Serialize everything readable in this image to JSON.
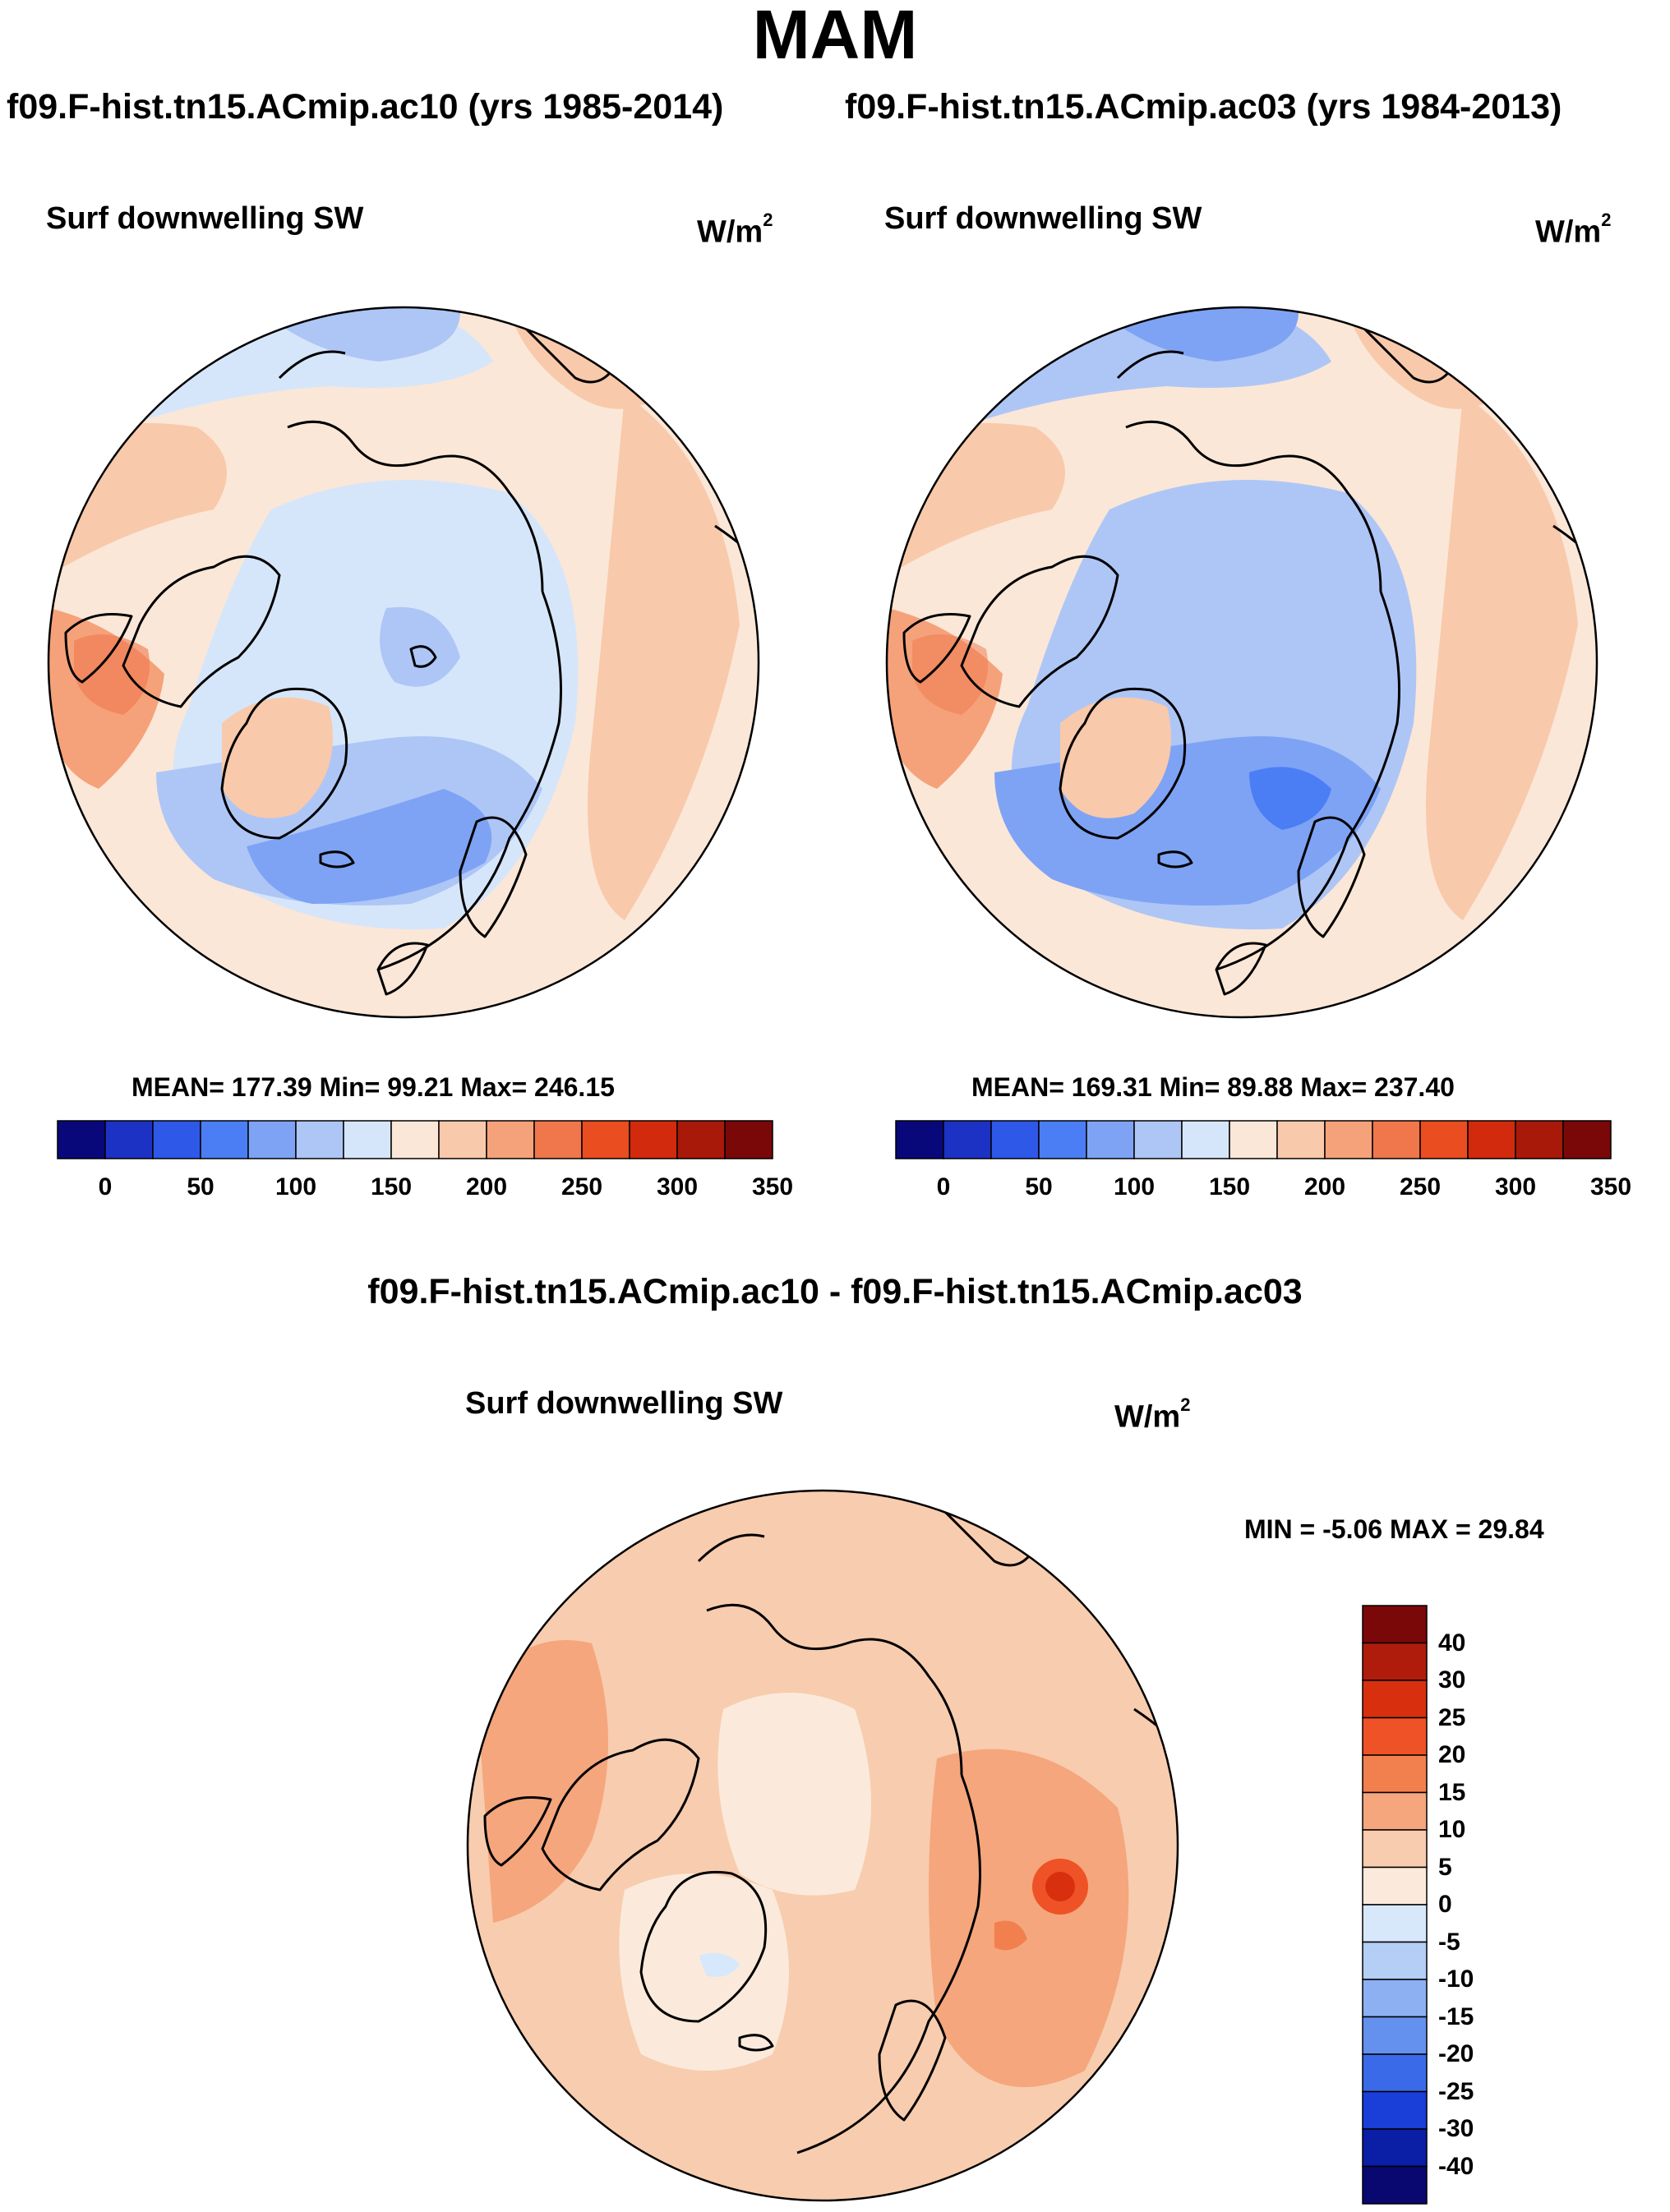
{
  "season": "MAM",
  "case_titles": {
    "left": "f09.F-hist.tn15.ACmip.ac10 (yrs 1985-2014)",
    "right": "f09.F-hist.tn15.ACmip.ac03 (yrs 1984-2013)"
  },
  "diff_title": "f09.F-hist.tn15.ACmip.ac10 - f09.F-hist.tn15.ACmip.ac03",
  "chart_data": [
    {
      "type": "heatmap",
      "projection": "north-polar-stereographic",
      "variable": "Surf downwelling SW",
      "units_base": "W/m",
      "units_exp": "2",
      "case": "f09.F-hist.tn15.ACmip.ac10 (yrs 1985-2014)",
      "stats": {
        "mean": "177.39",
        "min": "99.21",
        "max": "246.15"
      },
      "stats_text": "MEAN= 177.39  Min=  99.21  Max= 246.15",
      "colorbar": {
        "orientation": "horizontal",
        "levels": [
          0,
          25,
          50,
          75,
          100,
          125,
          150,
          175,
          200,
          225,
          250,
          275,
          300,
          325,
          350
        ],
        "tick_labels": [
          "0",
          "50",
          "100",
          "150",
          "200",
          "250",
          "300",
          "350"
        ],
        "colors": [
          "#08087a",
          "#1c32c4",
          "#2e58e8",
          "#4b7ef5",
          "#7ea3f5",
          "#aec6f6",
          "#d6e6fa",
          "#fbe7d7",
          "#f8c9ab",
          "#f5a27a",
          "#f0764c",
          "#e94d20",
          "#d22a0c",
          "#a8190a",
          "#7a0808"
        ]
      }
    },
    {
      "type": "heatmap",
      "projection": "north-polar-stereographic",
      "variable": "Surf downwelling SW",
      "units_base": "W/m",
      "units_exp": "2",
      "case": "f09.F-hist.tn15.ACmip.ac03 (yrs 1984-2013)",
      "stats": {
        "mean": "169.31",
        "min": "89.88",
        "max": "237.40"
      },
      "stats_text": "MEAN= 169.31  Min=  89.88  Max= 237.40",
      "colorbar": {
        "orientation": "horizontal",
        "levels": [
          0,
          25,
          50,
          75,
          100,
          125,
          150,
          175,
          200,
          225,
          250,
          275,
          300,
          325,
          350
        ],
        "tick_labels": [
          "0",
          "50",
          "100",
          "150",
          "200",
          "250",
          "300",
          "350"
        ],
        "colors": [
          "#08087a",
          "#1c32c4",
          "#2e58e8",
          "#4b7ef5",
          "#7ea3f5",
          "#aec6f6",
          "#d6e6fa",
          "#fbe7d7",
          "#f8c9ab",
          "#f5a27a",
          "#f0764c",
          "#e94d20",
          "#d22a0c",
          "#a8190a",
          "#7a0808"
        ]
      }
    },
    {
      "type": "heatmap",
      "projection": "north-polar-stereographic",
      "variable": "Surf downwelling SW",
      "units_base": "W/m",
      "units_exp": "2",
      "case": "f09.F-hist.tn15.ACmip.ac10 - f09.F-hist.tn15.ACmip.ac03",
      "stats": {
        "min": "-5.06",
        "max": "29.84"
      },
      "stats_text": "MIN =  -5.06 MAX =  29.84",
      "colorbar": {
        "orientation": "vertical",
        "tick_labels": [
          "40",
          "30",
          "25",
          "20",
          "15",
          "10",
          "5",
          "0",
          "-5",
          "-10",
          "-15",
          "-20",
          "-25",
          "-30",
          "-40"
        ],
        "colors": [
          "#7a0808",
          "#b01c0c",
          "#d8300e",
          "#ee5226",
          "#f2804f",
          "#f5a67c",
          "#f8ccae",
          "#fbeadb",
          "#d8e8fb",
          "#b4cef6",
          "#8cb0f2",
          "#6490ee",
          "#3a6ae8",
          "#1a3ed8",
          "#0a1ea6",
          "#080870"
        ]
      }
    }
  ]
}
